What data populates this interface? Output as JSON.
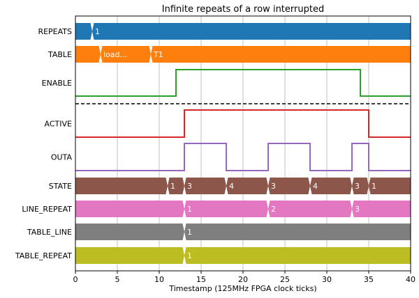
{
  "chart_data": {
    "type": "timing-diagram",
    "title": "Infinite repeats of a row interrupted",
    "xlabel": "Timestamp (125MHz FPGA clock ticks)",
    "xlim": [
      0,
      40
    ],
    "xticks": [
      0,
      5,
      10,
      15,
      20,
      25,
      30,
      35,
      40
    ],
    "grid": "vertical",
    "separator_after_row": "ENABLE",
    "rows": [
      {
        "name": "REPEATS",
        "kind": "bus",
        "color": "#1f77b4",
        "transitions": [
          2
        ],
        "labels": [
          {
            "x": 2,
            "text": "1"
          }
        ]
      },
      {
        "name": "TABLE",
        "kind": "bus",
        "color": "#ff7f0e",
        "transitions": [
          3,
          9
        ],
        "labels": [
          {
            "x": 3,
            "text": "load..."
          },
          {
            "x": 9,
            "text": "T1"
          }
        ]
      },
      {
        "name": "ENABLE",
        "kind": "bit",
        "color": "#2ca02c",
        "initial": 0,
        "edges": [
          12,
          34
        ]
      },
      {
        "name": "ACTIVE",
        "kind": "bit",
        "color": "#d62728",
        "initial": 0,
        "edges": [
          13,
          35
        ]
      },
      {
        "name": "OUTA",
        "kind": "bit",
        "color": "#9467bd",
        "initial": 0,
        "edges": [
          13,
          18,
          23,
          28,
          33,
          35
        ]
      },
      {
        "name": "STATE",
        "kind": "bus",
        "color": "#8c564b",
        "transitions": [
          11,
          13,
          18,
          23,
          28,
          33,
          35
        ],
        "labels": [
          {
            "x": 11,
            "text": "1"
          },
          {
            "x": 13,
            "text": "3"
          },
          {
            "x": 18,
            "text": "4"
          },
          {
            "x": 23,
            "text": "3"
          },
          {
            "x": 28,
            "text": "4"
          },
          {
            "x": 33,
            "text": "3"
          },
          {
            "x": 35,
            "text": "1"
          }
        ]
      },
      {
        "name": "LINE_REPEAT",
        "kind": "bus",
        "color": "#e377c2",
        "transitions": [
          13,
          23,
          33
        ],
        "labels": [
          {
            "x": 13,
            "text": "1"
          },
          {
            "x": 23,
            "text": "2"
          },
          {
            "x": 33,
            "text": "3"
          }
        ]
      },
      {
        "name": "TABLE_LINE",
        "kind": "bus",
        "color": "#7f7f7f",
        "transitions": [
          13
        ],
        "labels": [
          {
            "x": 13,
            "text": "1"
          }
        ]
      },
      {
        "name": "TABLE_REPEAT",
        "kind": "bus",
        "color": "#bcbd22",
        "transitions": [
          13
        ],
        "labels": [
          {
            "x": 13,
            "text": "1"
          }
        ]
      }
    ]
  }
}
